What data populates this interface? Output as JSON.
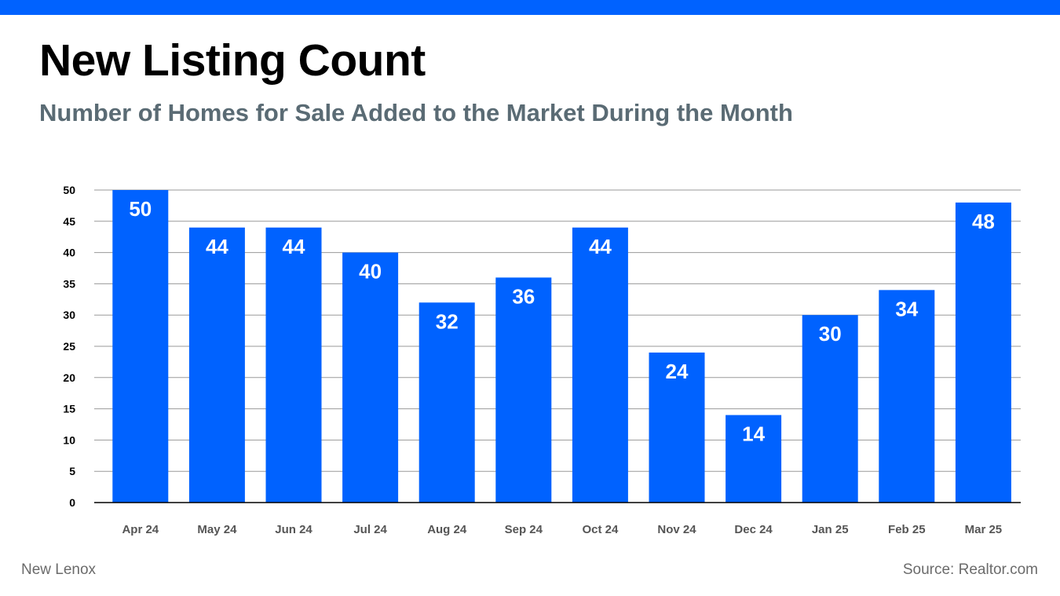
{
  "header": {
    "title": "New Listing Count",
    "subtitle": "Number of Homes for Sale Added to the Market During the Month"
  },
  "footer": {
    "location": "New Lenox",
    "source": "Source: Realtor.com"
  },
  "colors": {
    "accent": "#0062ff",
    "bar": "#0062ff",
    "subtitle": "#5a6b74",
    "grid": "#9a9a9a"
  },
  "chart_data": {
    "type": "bar",
    "categories": [
      "Apr 24",
      "May 24",
      "Jun 24",
      "Jul 24",
      "Aug 24",
      "Sep 24",
      "Oct 24",
      "Nov 24",
      "Dec 24",
      "Jan 25",
      "Feb 25",
      "Mar 25"
    ],
    "values": [
      50,
      44,
      44,
      40,
      32,
      36,
      44,
      24,
      14,
      30,
      34,
      48
    ],
    "ylim": [
      0,
      50
    ],
    "yticks": [
      0,
      5,
      10,
      15,
      20,
      25,
      30,
      35,
      40,
      45,
      50
    ],
    "grid": true,
    "data_labels": true
  }
}
